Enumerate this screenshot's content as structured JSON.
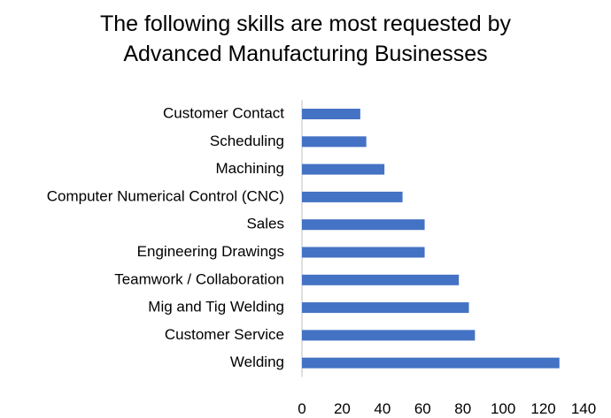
{
  "chart_data": {
    "type": "bar",
    "orientation": "horizontal",
    "title_lines": [
      "The following skills are most requested by",
      "Advanced Manufacturing Businesses"
    ],
    "categories": [
      "Customer Contact",
      "Scheduling",
      "Machining",
      "Computer Numerical Control (CNC)",
      "Sales",
      "Engineering Drawings",
      "Teamwork / Collaboration",
      "Mig and Tig Welding",
      "Customer Service",
      "Welding"
    ],
    "values": [
      29,
      32,
      41,
      50,
      61,
      61,
      78,
      83,
      86,
      128
    ],
    "xlim": [
      0,
      140
    ],
    "xticks": [
      "0",
      "20",
      "40",
      "60",
      "80",
      "100",
      "120",
      "140"
    ],
    "xlabel": "",
    "ylabel": "",
    "grid": false,
    "legend": "none",
    "bar_color": "#4472C4"
  }
}
